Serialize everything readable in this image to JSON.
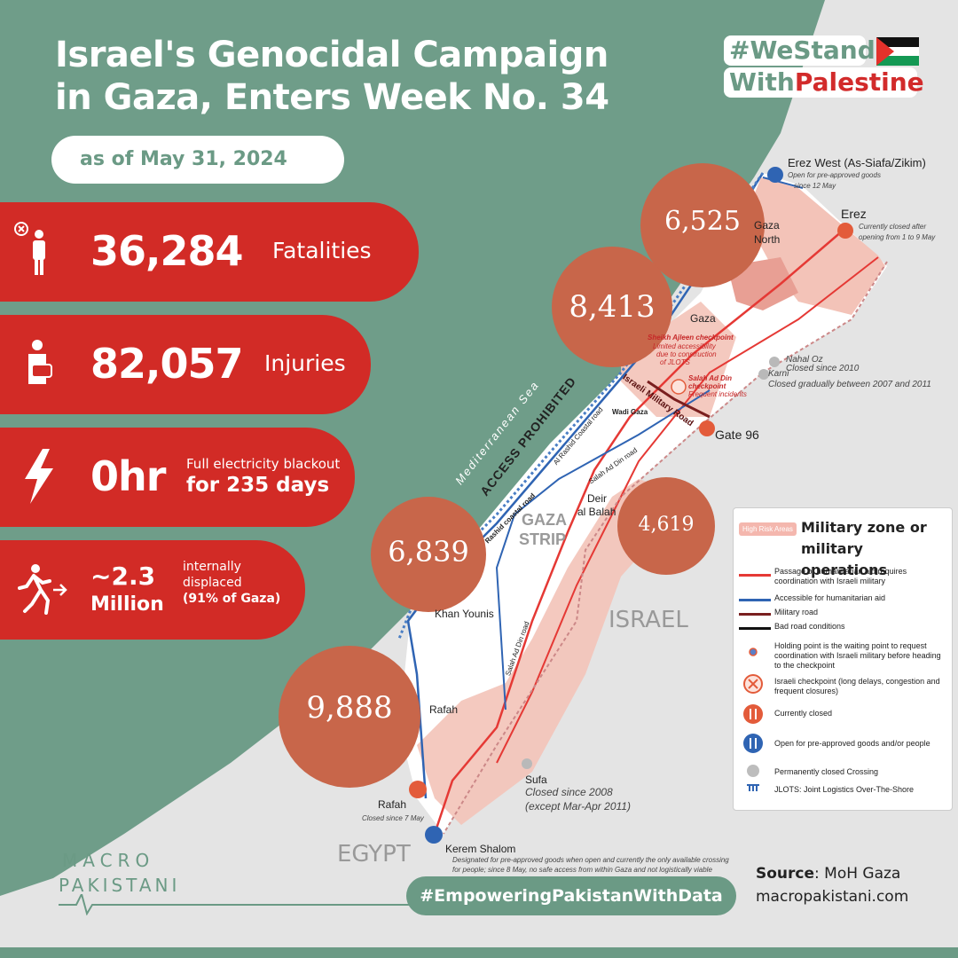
{
  "header": {
    "title_line1": "Israel's Genocidal Campaign",
    "title_line2": "in Gaza, Enters Week No. 34",
    "date": "as of May 31, 2024",
    "hashtag_line1": "#WeStand",
    "hashtag_line2a": "With",
    "hashtag_line2b": "Palestine"
  },
  "stats": {
    "fatalities": {
      "value": "36,284",
      "label": "Fatalities",
      "icon": "person-cross-icon"
    },
    "injuries": {
      "value": "82,057",
      "label": "Injuries",
      "icon": "injured-person-icon"
    },
    "electricity": {
      "value": "0hr",
      "label1": "Full electricity blackout",
      "label2": "for 235 days",
      "icon": "lightning-icon"
    },
    "displaced": {
      "value1": "~2.3",
      "value2": "Million",
      "label1": "internally",
      "label2": "displaced",
      "label3": "(91% of Gaza)",
      "icon": "running-person-icon"
    }
  },
  "map": {
    "circles": [
      {
        "name": "gaza-north-fatalities",
        "value": "6,525"
      },
      {
        "name": "gaza-fatalities",
        "value": "8,413"
      },
      {
        "name": "deir-al-balah-fatalities",
        "value": "4,619"
      },
      {
        "name": "khan-younis-fatalities",
        "value": "6,839"
      },
      {
        "name": "rafah-fatalities",
        "value": "9,888"
      }
    ],
    "labels": {
      "erez_west": "Erez West (As-Siafa/Zikim)",
      "erez_west_note1": "Open for pre-approved goods",
      "erez_west_note2": "since 12 May",
      "erez": "Erez",
      "erez_note1": "Currently closed after",
      "erez_note2": "opening from 1 to 9 May",
      "gaza_north1": "Gaza",
      "gaza_north2": "North",
      "gaza": "Gaza",
      "nahal_oz": "Nahal Oz",
      "nahal_oz_note": "Closed since 2010",
      "karni": "Karni",
      "karni_note": "Closed gradually between 2007 and 2011",
      "gate96": "Gate 96",
      "checkpoint1": "Sheikh Ajleen checkpoint",
      "checkpoint1_note1": "Limited accessibility",
      "checkpoint1_note2": "due to construction",
      "checkpoint1_note3": "of JLOTS",
      "salah_checkpoint1": "Salah Ad Din",
      "salah_checkpoint2": "checkpoint",
      "salah_checkpoint3": "Frequent incidents",
      "military_road": "Israeli Military Road",
      "wadi_gaza": "Wadi Gaza",
      "rashid_road": "Al Rashid Coastal road",
      "salah_road": "Salah Ad Din road",
      "salah_road2": "Salah Ad Din road",
      "coastal_road": "Rashid coastal road",
      "sea": "Mediterranean Sea",
      "access": "ACCESS PROHIBITED",
      "gaza_strip1": "GAZA",
      "gaza_strip2": "STRIP",
      "deir1": "Deir",
      "deir2": "al Balah",
      "khan_younis": "Khan Younis",
      "rafah_city": "Rafah",
      "israel": "ISRAEL",
      "egypt": "EGYPT",
      "sufa": "Sufa",
      "sufa_note1": "Closed since  2008",
      "sufa_note2": "(except Mar-Apr 2011)",
      "rafah_crossing": "Rafah",
      "rafah_note": "Closed since 7 May",
      "kerem": "Kerem Shalom",
      "kerem_note1": "Designated for pre-approved goods when open and currently the only available crossing",
      "kerem_note2": "for people; since 8 May, no safe access from within Gaza and not logistically viable"
    }
  },
  "legend": {
    "high_risk": "High Risk Areas",
    "title1": "Military zone or",
    "title2": "military operations",
    "items": [
      {
        "mark": "red-line",
        "text": "Passage of humanitarian aid requires coordination with Israeli military"
      },
      {
        "mark": "blue-line",
        "text": "Accessible for humanitarian aid"
      },
      {
        "mark": "darkred-line",
        "text": "Military road"
      },
      {
        "mark": "black-line",
        "text": "Bad road conditions"
      },
      {
        "mark": "holding-point-icon",
        "text": "Holding point is the waiting point to request coordination with Israeli military before heading to the checkpoint"
      },
      {
        "mark": "checkpoint-icon",
        "text": "Israeli checkpoint (long delays, congestion and frequent closures)"
      },
      {
        "mark": "closed-crossing-icon",
        "text": "Currently closed"
      },
      {
        "mark": "open-crossing-icon",
        "text": "Open for pre-approved goods and/or people"
      },
      {
        "mark": "permanently-closed-icon",
        "text": "Permanently closed Crossing"
      },
      {
        "mark": "jlots-icon",
        "text": "JLOTS: Joint Logistics Over-The-Shore"
      }
    ]
  },
  "footer": {
    "hashtag": "#EmpoweringPakistanWithData",
    "source_label": "Source",
    "source_value": ": MoH Gaza",
    "website": "macropakistani.com",
    "logo_line1": "MACRO",
    "logo_line2": "PAKISTANI"
  },
  "colors": {
    "green": "#6b9a85",
    "red": "#d22b26",
    "circle": "#c8664a",
    "risk": "#f4c0b6"
  }
}
